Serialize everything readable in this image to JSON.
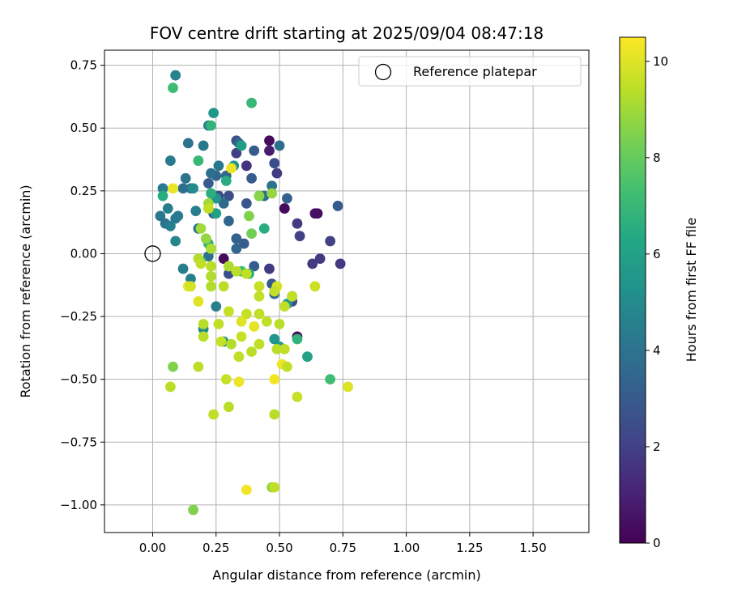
{
  "chart_data": {
    "type": "scatter",
    "title": "FOV centre drift starting at 2025/09/04 08:47:18",
    "xlabel": "Angular distance from reference (arcmin)",
    "ylabel": "Rotation from reference (arcmin)",
    "xlim": [
      -0.19,
      1.72
    ],
    "ylim": [
      -1.11,
      0.81
    ],
    "xticks": [
      0.0,
      0.25,
      0.5,
      0.75,
      1.0,
      1.25,
      1.5
    ],
    "xtick_labels": [
      "0.00",
      "0.25",
      "0.50",
      "0.75",
      "1.00",
      "1.25",
      "1.50"
    ],
    "yticks": [
      0.75,
      0.5,
      0.25,
      0.0,
      -0.25,
      -0.5,
      -0.75,
      -1.0
    ],
    "ytick_labels": [
      "0.75",
      "0.50",
      "0.25",
      "0.00",
      "−0.25",
      "−0.50",
      "−0.75",
      "−1.00"
    ],
    "grid": true,
    "legend": {
      "position": "top-right",
      "entries": [
        "Reference platepar"
      ]
    },
    "reference_point": {
      "x": 0.0,
      "y": 0.0,
      "marker": "open-circle"
    },
    "colorbar": {
      "label": "Hours from first FF file",
      "min": 0,
      "max": 10.5,
      "ticks": [
        0,
        2,
        4,
        6,
        8,
        10
      ],
      "tick_labels": [
        "0",
        "2",
        "4",
        "6",
        "8",
        "10"
      ],
      "colormap": "viridis"
    },
    "series": [
      {
        "name": "FOV centre drift",
        "points": [
          {
            "x": 0.46,
            "y": 0.45,
            "h": 0.3
          },
          {
            "x": 0.46,
            "y": 0.41,
            "h": 0.8
          },
          {
            "x": 0.52,
            "y": 0.18,
            "h": 0.2
          },
          {
            "x": 0.64,
            "y": 0.16,
            "h": 0.5
          },
          {
            "x": 0.65,
            "y": 0.16,
            "h": 0.4
          },
          {
            "x": 0.57,
            "y": 0.12,
            "h": 1.8
          },
          {
            "x": 0.58,
            "y": 0.07,
            "h": 2.0
          },
          {
            "x": 0.7,
            "y": 0.05,
            "h": 2.0
          },
          {
            "x": 0.74,
            "y": -0.04,
            "h": 1.8
          },
          {
            "x": 0.63,
            "y": -0.04,
            "h": 1.8
          },
          {
            "x": 0.66,
            "y": -0.02,
            "h": 1.8
          },
          {
            "x": 0.57,
            "y": -0.33,
            "h": 0.4
          },
          {
            "x": 0.28,
            "y": -0.02,
            "h": 0.3
          },
          {
            "x": 0.46,
            "y": -0.06,
            "h": 1.8
          },
          {
            "x": 0.49,
            "y": 0.32,
            "h": 1.8
          },
          {
            "x": 0.37,
            "y": 0.35,
            "h": 1.5
          },
          {
            "x": 0.33,
            "y": 0.4,
            "h": 2.0
          },
          {
            "x": 0.48,
            "y": 0.36,
            "h": 2.5
          },
          {
            "x": 0.33,
            "y": 0.45,
            "h": 2.6
          },
          {
            "x": 0.4,
            "y": 0.41,
            "h": 3.0
          },
          {
            "x": 0.73,
            "y": 0.19,
            "h": 3.0
          },
          {
            "x": 0.53,
            "y": 0.22,
            "h": 3.2
          },
          {
            "x": 0.37,
            "y": 0.2,
            "h": 2.8
          },
          {
            "x": 0.39,
            "y": 0.3,
            "h": 3.0
          },
          {
            "x": 0.3,
            "y": 0.23,
            "h": 2.5
          },
          {
            "x": 0.26,
            "y": 0.23,
            "h": 2.5
          },
          {
            "x": 0.22,
            "y": 0.28,
            "h": 3.0
          },
          {
            "x": 0.25,
            "y": 0.31,
            "h": 3.5
          },
          {
            "x": 0.29,
            "y": 0.31,
            "h": 3.5
          },
          {
            "x": 0.47,
            "y": 0.27,
            "h": 4.0
          },
          {
            "x": 0.44,
            "y": 0.23,
            "h": 3.8
          },
          {
            "x": 0.5,
            "y": 0.43,
            "h": 3.8
          },
          {
            "x": 0.34,
            "y": 0.44,
            "h": 3.5
          },
          {
            "x": 0.36,
            "y": 0.04,
            "h": 3.0
          },
          {
            "x": 0.33,
            "y": 0.06,
            "h": 3.2
          },
          {
            "x": 0.33,
            "y": 0.02,
            "h": 3.5
          },
          {
            "x": 0.3,
            "y": -0.08,
            "h": 2.5
          },
          {
            "x": 0.4,
            "y": -0.05,
            "h": 3.0
          },
          {
            "x": 0.47,
            "y": -0.12,
            "h": 3.0
          },
          {
            "x": 0.48,
            "y": -0.16,
            "h": 3.5
          },
          {
            "x": 0.55,
            "y": -0.19,
            "h": 2.5
          },
          {
            "x": 0.3,
            "y": 0.13,
            "h": 3.5
          },
          {
            "x": 0.24,
            "y": 0.16,
            "h": 3.0
          },
          {
            "x": 0.28,
            "y": 0.2,
            "h": 3.6
          },
          {
            "x": 0.18,
            "y": 0.1,
            "h": 4.0
          },
          {
            "x": 0.22,
            "y": -0.01,
            "h": 3.8
          },
          {
            "x": 0.17,
            "y": 0.17,
            "h": 4.5
          },
          {
            "x": 0.13,
            "y": 0.3,
            "h": 4.0
          },
          {
            "x": 0.12,
            "y": 0.26,
            "h": 3.8
          },
          {
            "x": 0.14,
            "y": 0.44,
            "h": 4.0
          },
          {
            "x": 0.2,
            "y": 0.43,
            "h": 4.2
          },
          {
            "x": 0.22,
            "y": 0.51,
            "h": 4.5
          },
          {
            "x": 0.23,
            "y": 0.32,
            "h": 3.8
          },
          {
            "x": 0.26,
            "y": 0.35,
            "h": 4.2
          },
          {
            "x": 0.15,
            "y": 0.26,
            "h": 4.0
          },
          {
            "x": 0.09,
            "y": 0.14,
            "h": 4.2
          },
          {
            "x": 0.05,
            "y": 0.12,
            "h": 4.0
          },
          {
            "x": 0.03,
            "y": 0.15,
            "h": 4.2
          },
          {
            "x": 0.07,
            "y": 0.11,
            "h": 4.5
          },
          {
            "x": 0.1,
            "y": 0.15,
            "h": 4.3
          },
          {
            "x": 0.06,
            "y": 0.18,
            "h": 4.5
          },
          {
            "x": 0.04,
            "y": 0.26,
            "h": 4.3
          },
          {
            "x": 0.07,
            "y": 0.37,
            "h": 4.3
          },
          {
            "x": 0.09,
            "y": 0.05,
            "h": 4.8
          },
          {
            "x": 0.12,
            "y": -0.06,
            "h": 4.5
          },
          {
            "x": 0.15,
            "y": -0.1,
            "h": 4.5
          },
          {
            "x": 0.25,
            "y": -0.21,
            "h": 4.5
          },
          {
            "x": 0.09,
            "y": 0.71,
            "h": 4.6
          },
          {
            "x": 0.24,
            "y": 0.56,
            "h": 5.5
          },
          {
            "x": 0.35,
            "y": 0.43,
            "h": 5.8
          },
          {
            "x": 0.32,
            "y": 0.35,
            "h": 5.5
          },
          {
            "x": 0.16,
            "y": 0.26,
            "h": 5.0
          },
          {
            "x": 0.25,
            "y": 0.22,
            "h": 5.5
          },
          {
            "x": 0.25,
            "y": 0.16,
            "h": 6.0
          },
          {
            "x": 0.42,
            "y": 0.23,
            "h": 5.8
          },
          {
            "x": 0.55,
            "y": -0.17,
            "h": 5.0
          },
          {
            "x": 0.53,
            "y": -0.2,
            "h": 5.5
          },
          {
            "x": 0.48,
            "y": -0.34,
            "h": 5.5
          },
          {
            "x": 0.5,
            "y": -0.37,
            "h": 5.8
          },
          {
            "x": 0.61,
            "y": -0.41,
            "h": 6.0
          },
          {
            "x": 0.28,
            "y": -0.35,
            "h": 5.5
          },
          {
            "x": 0.2,
            "y": -0.3,
            "h": 5.0
          },
          {
            "x": 0.44,
            "y": 0.1,
            "h": 6.5
          },
          {
            "x": 0.38,
            "y": -0.08,
            "h": 6.5
          },
          {
            "x": 0.29,
            "y": 0.29,
            "h": 6.5
          },
          {
            "x": 0.23,
            "y": 0.24,
            "h": 6.6
          },
          {
            "x": 0.22,
            "y": 0.04,
            "h": 6.8
          },
          {
            "x": 0.08,
            "y": 0.66,
            "h": 7.2
          },
          {
            "x": 0.39,
            "y": 0.6,
            "h": 7.0
          },
          {
            "x": 0.18,
            "y": 0.37,
            "h": 7.0
          },
          {
            "x": 0.23,
            "y": 0.51,
            "h": 6.8
          },
          {
            "x": 0.35,
            "y": -0.07,
            "h": 7.2
          },
          {
            "x": 0.19,
            "y": -0.03,
            "h": 7.2
          },
          {
            "x": 0.57,
            "y": -0.34,
            "h": 6.8
          },
          {
            "x": 0.7,
            "y": -0.5,
            "h": 7.2
          },
          {
            "x": 0.04,
            "y": 0.23,
            "h": 6.5
          },
          {
            "x": 0.08,
            "y": 0.26,
            "h": 10.2
          },
          {
            "x": 0.31,
            "y": 0.34,
            "h": 10.2
          },
          {
            "x": 0.42,
            "y": 0.23,
            "h": 8.6
          },
          {
            "x": 0.47,
            "y": 0.24,
            "h": 8.8
          },
          {
            "x": 0.39,
            "y": 0.08,
            "h": 8.2
          },
          {
            "x": 0.38,
            "y": 0.15,
            "h": 8.5
          },
          {
            "x": 0.22,
            "y": 0.2,
            "h": 9.0
          },
          {
            "x": 0.22,
            "y": 0.18,
            "h": 9.5
          },
          {
            "x": 0.19,
            "y": 0.1,
            "h": 9.0
          },
          {
            "x": 0.21,
            "y": 0.06,
            "h": 8.8
          },
          {
            "x": 0.23,
            "y": 0.02,
            "h": 9.2
          },
          {
            "x": 0.18,
            "y": -0.02,
            "h": 9.3
          },
          {
            "x": 0.19,
            "y": -0.04,
            "h": 9.5
          },
          {
            "x": 0.23,
            "y": -0.05,
            "h": 9.4
          },
          {
            "x": 0.3,
            "y": -0.05,
            "h": 9.2
          },
          {
            "x": 0.33,
            "y": -0.07,
            "h": 9.4
          },
          {
            "x": 0.37,
            "y": -0.08,
            "h": 9.5
          },
          {
            "x": 0.23,
            "y": -0.09,
            "h": 9.3
          },
          {
            "x": 0.14,
            "y": -0.13,
            "h": 10.1
          },
          {
            "x": 0.15,
            "y": -0.13,
            "h": 9.8
          },
          {
            "x": 0.23,
            "y": -0.13,
            "h": 9.3
          },
          {
            "x": 0.28,
            "y": -0.13,
            "h": 9.4
          },
          {
            "x": 0.42,
            "y": -0.13,
            "h": 9.6
          },
          {
            "x": 0.49,
            "y": -0.13,
            "h": 9.8
          },
          {
            "x": 0.48,
            "y": -0.15,
            "h": 9.5
          },
          {
            "x": 0.42,
            "y": -0.17,
            "h": 9.5
          },
          {
            "x": 0.55,
            "y": -0.17,
            "h": 9.5
          },
          {
            "x": 0.64,
            "y": -0.13,
            "h": 9.7
          },
          {
            "x": 0.52,
            "y": -0.21,
            "h": 9.5
          },
          {
            "x": 0.18,
            "y": -0.19,
            "h": 10.0
          },
          {
            "x": 0.3,
            "y": -0.23,
            "h": 9.6
          },
          {
            "x": 0.37,
            "y": -0.24,
            "h": 9.6
          },
          {
            "x": 0.42,
            "y": -0.24,
            "h": 9.5
          },
          {
            "x": 0.45,
            "y": -0.27,
            "h": 9.5
          },
          {
            "x": 0.5,
            "y": -0.28,
            "h": 9.4
          },
          {
            "x": 0.2,
            "y": -0.28,
            "h": 9.4
          },
          {
            "x": 0.26,
            "y": -0.28,
            "h": 9.5
          },
          {
            "x": 0.35,
            "y": -0.27,
            "h": 10.0
          },
          {
            "x": 0.4,
            "y": -0.29,
            "h": 10.1
          },
          {
            "x": 0.35,
            "y": -0.33,
            "h": 9.6
          },
          {
            "x": 0.2,
            "y": -0.33,
            "h": 9.4
          },
          {
            "x": 0.27,
            "y": -0.35,
            "h": 9.6
          },
          {
            "x": 0.31,
            "y": -0.36,
            "h": 9.3
          },
          {
            "x": 0.42,
            "y": -0.36,
            "h": 9.5
          },
          {
            "x": 0.49,
            "y": -0.38,
            "h": 9.4
          },
          {
            "x": 0.52,
            "y": -0.38,
            "h": 9.5
          },
          {
            "x": 0.34,
            "y": -0.41,
            "h": 9.5
          },
          {
            "x": 0.39,
            "y": -0.39,
            "h": 9.4
          },
          {
            "x": 0.51,
            "y": -0.44,
            "h": 10.2
          },
          {
            "x": 0.53,
            "y": -0.45,
            "h": 9.5
          },
          {
            "x": 0.08,
            "y": -0.45,
            "h": 8.5
          },
          {
            "x": 0.18,
            "y": -0.45,
            "h": 9.4
          },
          {
            "x": 0.29,
            "y": -0.5,
            "h": 9.6
          },
          {
            "x": 0.48,
            "y": -0.5,
            "h": 10.3
          },
          {
            "x": 0.34,
            "y": -0.51,
            "h": 10.2
          },
          {
            "x": 0.07,
            "y": -0.53,
            "h": 9.4
          },
          {
            "x": 0.77,
            "y": -0.53,
            "h": 10.0
          },
          {
            "x": 0.57,
            "y": -0.57,
            "h": 9.6
          },
          {
            "x": 0.3,
            "y": -0.61,
            "h": 9.4
          },
          {
            "x": 0.24,
            "y": -0.64,
            "h": 9.5
          },
          {
            "x": 0.48,
            "y": -0.64,
            "h": 9.4
          },
          {
            "x": 0.47,
            "y": -0.93,
            "h": 8.8
          },
          {
            "x": 0.48,
            "y": -0.93,
            "h": 9.5
          },
          {
            "x": 0.37,
            "y": -0.94,
            "h": 10.3
          },
          {
            "x": 0.16,
            "y": -1.02,
            "h": 8.5
          }
        ]
      }
    ]
  }
}
